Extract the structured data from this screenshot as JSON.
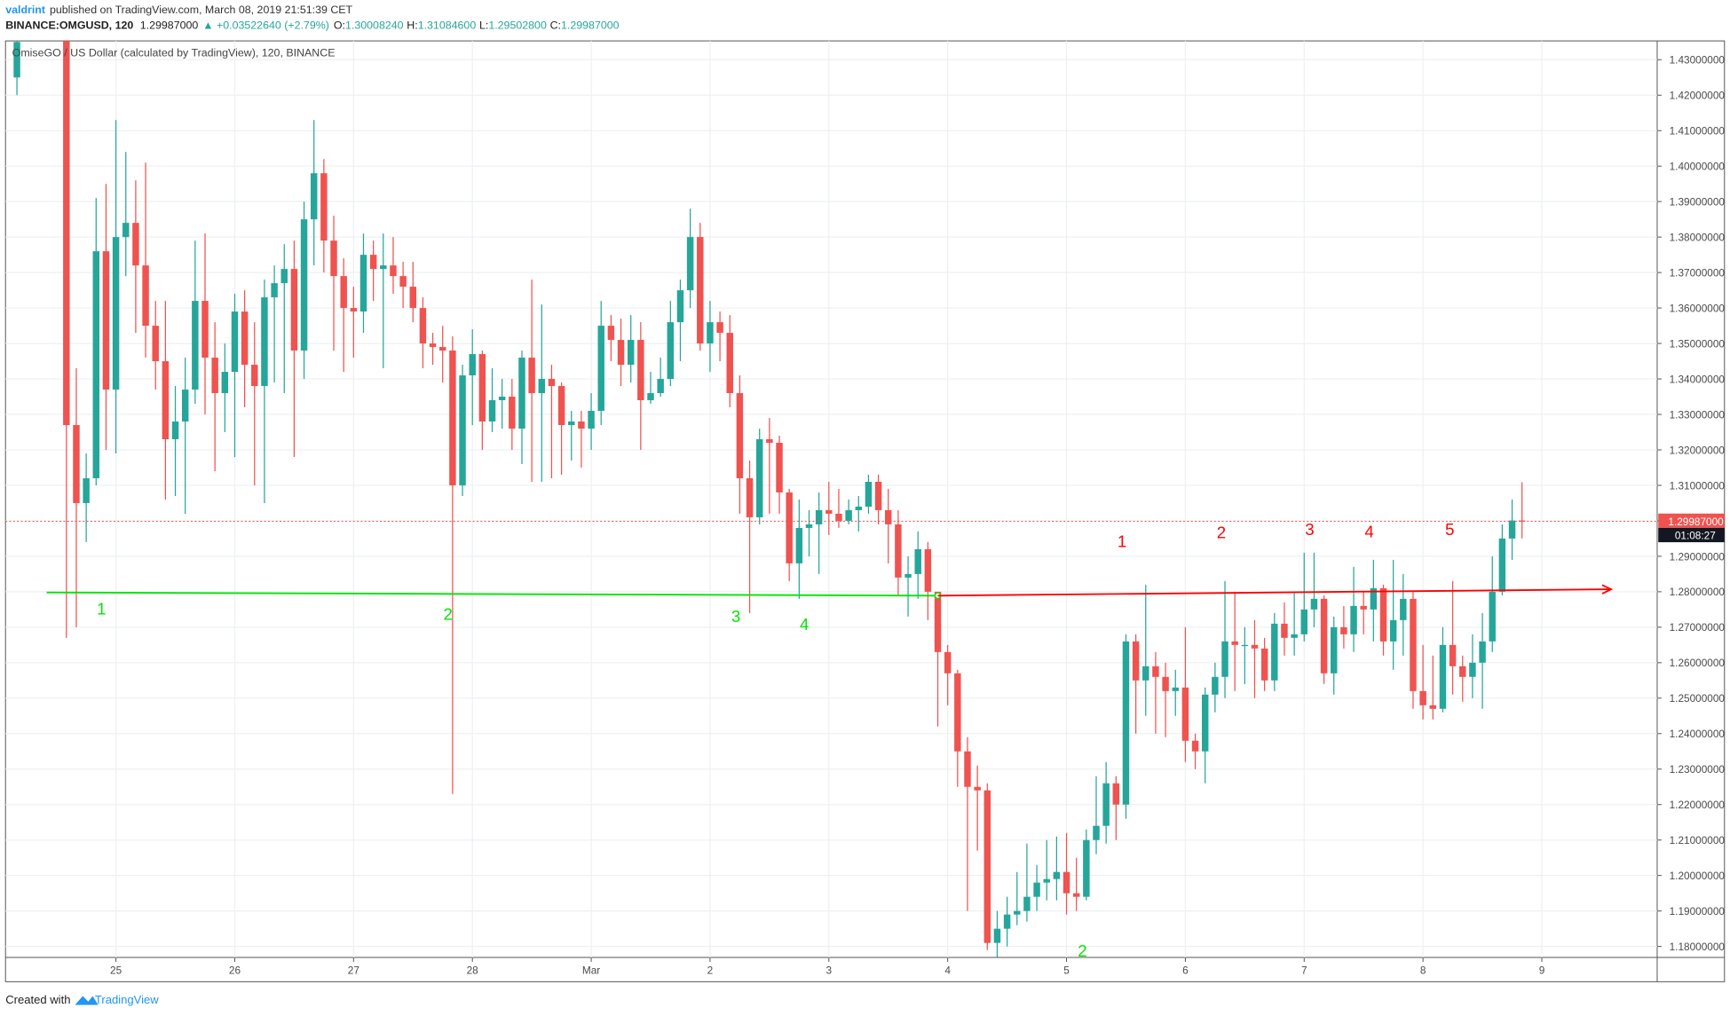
{
  "header": {
    "author": "valdrint",
    "published": "published on TradingView.com, March 08, 2019 21:51:39 CET",
    "symbol": "BINANCE:OMGUSD, 120",
    "last": "1.29987000",
    "change": "▲ +0.03522640 (+2.79%)",
    "o_key": "O:",
    "o_val": "1.30008240",
    "h_key": "H:",
    "h_val": "1.31084600",
    "l_key": "L:",
    "l_val": "1.29502800",
    "c_key": "C:",
    "c_val": "1.29987000",
    "legend": "OmiseGO / US Dollar (calculated by TradingView), 120, BINANCE"
  },
  "footer": {
    "created": "Created with",
    "brand": "TradingView"
  },
  "chart_data": {
    "type": "candlestick",
    "up_color": "#26a69a",
    "down_color": "#ef5350",
    "xlim": [
      -22.3,
      311.3
    ],
    "ylim": [
      1.1769,
      1.4353
    ],
    "xticks": [
      {
        "value": 0,
        "label": "25"
      },
      {
        "value": 24,
        "label": "26"
      },
      {
        "value": 48,
        "label": "27"
      },
      {
        "value": 72,
        "label": "28"
      },
      {
        "value": 96,
        "label": "Mar"
      },
      {
        "value": 120,
        "label": "2"
      },
      {
        "value": 144,
        "label": "3"
      },
      {
        "value": 168,
        "label": "4"
      },
      {
        "value": 192,
        "label": "5"
      },
      {
        "value": 216,
        "label": "6"
      },
      {
        "value": 240,
        "label": "7"
      },
      {
        "value": 264,
        "label": "8"
      },
      {
        "value": 288,
        "label": "9"
      }
    ],
    "yticks": [
      {
        "value": 1.18,
        "label": "1.18000000"
      },
      {
        "value": 1.19,
        "label": "1.19000000"
      },
      {
        "value": 1.2,
        "label": "1.20000000"
      },
      {
        "value": 1.21,
        "label": "1.21000000"
      },
      {
        "value": 1.22,
        "label": "1.22000000"
      },
      {
        "value": 1.23,
        "label": "1.23000000"
      },
      {
        "value": 1.24,
        "label": "1.24000000"
      },
      {
        "value": 1.25,
        "label": "1.25000000"
      },
      {
        "value": 1.26,
        "label": "1.26000000"
      },
      {
        "value": 1.27,
        "label": "1.27000000"
      },
      {
        "value": 1.28,
        "label": "1.28000000"
      },
      {
        "value": 1.29,
        "label": "1.29000000"
      },
      {
        "value": 1.3,
        "label": "1.30000000"
      },
      {
        "value": 1.31,
        "label": "1.31000000"
      },
      {
        "value": 1.32,
        "label": "1.32000000"
      },
      {
        "value": 1.33,
        "label": "1.33000000"
      },
      {
        "value": 1.34,
        "label": "1.34000000"
      },
      {
        "value": 1.35,
        "label": "1.35000000"
      },
      {
        "value": 1.36,
        "label": "1.36000000"
      },
      {
        "value": 1.37,
        "label": "1.37000000"
      },
      {
        "value": 1.38,
        "label": "1.38000000"
      },
      {
        "value": 1.39,
        "label": "1.39000000"
      },
      {
        "value": 1.4,
        "label": "1.40000000"
      },
      {
        "value": 1.41,
        "label": "1.41000000"
      },
      {
        "value": 1.42,
        "label": "1.42000000"
      },
      {
        "value": 1.43,
        "label": "1.43000000"
      }
    ],
    "grid": true,
    "last_price": {
      "value": 1.29987,
      "label": "1.29987000",
      "countdown": "01:08:27",
      "color": "#ef5350"
    },
    "x": [
      -20,
      -10,
      -8,
      -6,
      -4,
      -2,
      0,
      2,
      4,
      6,
      8,
      10,
      12,
      14,
      16,
      18,
      20,
      22,
      24,
      26,
      28,
      30,
      32,
      34,
      36,
      38,
      40,
      42,
      44,
      46,
      48,
      50,
      52,
      54,
      56,
      58,
      60,
      62,
      64,
      66,
      68,
      70,
      72,
      74,
      76,
      78,
      80,
      82,
      84,
      86,
      88,
      90,
      92,
      94,
      96,
      98,
      100,
      102,
      104,
      106,
      108,
      110,
      112,
      114,
      116,
      118,
      120,
      122,
      124,
      126,
      128,
      130,
      132,
      134,
      136,
      138,
      140,
      142,
      144,
      146,
      148,
      150,
      152,
      154,
      156,
      158,
      160,
      162,
      164,
      166,
      168,
      170,
      172,
      174,
      176,
      178,
      180,
      182,
      184,
      186,
      188,
      190,
      192,
      194,
      196,
      198,
      200,
      202,
      204,
      206,
      208,
      210,
      212,
      214,
      216,
      218,
      220,
      222,
      224,
      226,
      228,
      230,
      232,
      234,
      236,
      238,
      240,
      242,
      244,
      246,
      248,
      250,
      252,
      254,
      256,
      258,
      260,
      262,
      264,
      266,
      268,
      270,
      272,
      274,
      276,
      278,
      280,
      282,
      284
    ],
    "ohlc": [
      [
        1.425,
        1.44,
        1.42,
        1.435
      ],
      [
        1.44,
        1.45,
        1.267,
        1.327
      ],
      [
        1.327,
        1.343,
        1.27,
        1.305
      ],
      [
        1.305,
        1.319,
        1.294,
        1.312
      ],
      [
        1.312,
        1.391,
        1.31,
        1.376
      ],
      [
        1.376,
        1.395,
        1.32,
        1.337
      ],
      [
        1.337,
        1.413,
        1.319,
        1.38
      ],
      [
        1.38,
        1.404,
        1.369,
        1.384
      ],
      [
        1.384,
        1.396,
        1.353,
        1.372
      ],
      [
        1.372,
        1.401,
        1.346,
        1.355
      ],
      [
        1.355,
        1.362,
        1.337,
        1.345
      ],
      [
        1.345,
        1.362,
        1.306,
        1.323
      ],
      [
        1.323,
        1.338,
        1.307,
        1.328
      ],
      [
        1.328,
        1.346,
        1.302,
        1.337
      ],
      [
        1.337,
        1.379,
        1.333,
        1.362
      ],
      [
        1.362,
        1.381,
        1.33,
        1.346
      ],
      [
        1.346,
        1.356,
        1.314,
        1.336
      ],
      [
        1.336,
        1.35,
        1.325,
        1.342
      ],
      [
        1.342,
        1.364,
        1.318,
        1.359
      ],
      [
        1.359,
        1.365,
        1.332,
        1.344
      ],
      [
        1.344,
        1.356,
        1.31,
        1.338
      ],
      [
        1.338,
        1.368,
        1.305,
        1.363
      ],
      [
        1.363,
        1.372,
        1.339,
        1.367
      ],
      [
        1.367,
        1.378,
        1.336,
        1.371
      ],
      [
        1.371,
        1.379,
        1.318,
        1.348
      ],
      [
        1.348,
        1.39,
        1.34,
        1.385
      ],
      [
        1.385,
        1.413,
        1.372,
        1.398
      ],
      [
        1.398,
        1.402,
        1.37,
        1.379
      ],
      [
        1.379,
        1.386,
        1.348,
        1.369
      ],
      [
        1.369,
        1.374,
        1.342,
        1.36
      ],
      [
        1.36,
        1.366,
        1.346,
        1.359
      ],
      [
        1.359,
        1.381,
        1.353,
        1.375
      ],
      [
        1.375,
        1.379,
        1.362,
        1.371
      ],
      [
        1.371,
        1.381,
        1.343,
        1.372
      ],
      [
        1.372,
        1.38,
        1.364,
        1.369
      ],
      [
        1.369,
        1.373,
        1.36,
        1.366
      ],
      [
        1.366,
        1.373,
        1.356,
        1.36
      ],
      [
        1.36,
        1.363,
        1.343,
        1.35
      ],
      [
        1.35,
        1.353,
        1.344,
        1.349
      ],
      [
        1.349,
        1.355,
        1.339,
        1.348
      ],
      [
        1.348,
        1.352,
        1.223,
        1.31
      ],
      [
        1.31,
        1.344,
        1.307,
        1.341
      ],
      [
        1.341,
        1.354,
        1.327,
        1.347
      ],
      [
        1.347,
        1.348,
        1.32,
        1.328
      ],
      [
        1.328,
        1.343,
        1.325,
        1.334
      ],
      [
        1.334,
        1.34,
        1.326,
        1.335
      ],
      [
        1.335,
        1.34,
        1.32,
        1.326
      ],
      [
        1.326,
        1.348,
        1.316,
        1.346
      ],
      [
        1.346,
        1.368,
        1.311,
        1.336
      ],
      [
        1.336,
        1.361,
        1.311,
        1.34
      ],
      [
        1.34,
        1.344,
        1.312,
        1.338
      ],
      [
        1.338,
        1.339,
        1.313,
        1.327
      ],
      [
        1.327,
        1.331,
        1.317,
        1.328
      ],
      [
        1.328,
        1.331,
        1.315,
        1.326
      ],
      [
        1.326,
        1.336,
        1.32,
        1.331
      ],
      [
        1.331,
        1.362,
        1.327,
        1.355
      ],
      [
        1.355,
        1.358,
        1.345,
        1.351
      ],
      [
        1.351,
        1.357,
        1.338,
        1.344
      ],
      [
        1.344,
        1.358,
        1.339,
        1.351
      ],
      [
        1.351,
        1.356,
        1.32,
        1.334
      ],
      [
        1.334,
        1.342,
        1.333,
        1.336
      ],
      [
        1.336,
        1.346,
        1.335,
        1.34
      ],
      [
        1.34,
        1.362,
        1.338,
        1.356
      ],
      [
        1.356,
        1.368,
        1.345,
        1.365
      ],
      [
        1.365,
        1.388,
        1.36,
        1.38
      ],
      [
        1.38,
        1.384,
        1.348,
        1.35
      ],
      [
        1.35,
        1.362,
        1.342,
        1.356
      ],
      [
        1.356,
        1.359,
        1.345,
        1.353
      ],
      [
        1.353,
        1.358,
        1.332,
        1.336
      ],
      [
        1.336,
        1.341,
        1.302,
        1.312
      ],
      [
        1.312,
        1.317,
        1.274,
        1.301
      ],
      [
        1.301,
        1.326,
        1.299,
        1.323
      ],
      [
        1.323,
        1.329,
        1.302,
        1.322
      ],
      [
        1.322,
        1.324,
        1.302,
        1.308
      ],
      [
        1.308,
        1.309,
        1.283,
        1.288
      ],
      [
        1.288,
        1.306,
        1.278,
        1.298
      ],
      [
        1.298,
        1.303,
        1.29,
        1.299
      ],
      [
        1.299,
        1.308,
        1.285,
        1.303
      ],
      [
        1.303,
        1.311,
        1.296,
        1.302
      ],
      [
        1.302,
        1.309,
        1.298,
        1.3
      ],
      [
        1.3,
        1.306,
        1.299,
        1.303
      ],
      [
        1.303,
        1.307,
        1.297,
        1.304
      ],
      [
        1.304,
        1.313,
        1.302,
        1.311
      ],
      [
        1.311,
        1.313,
        1.299,
        1.303
      ],
      [
        1.303,
        1.309,
        1.288,
        1.299
      ],
      [
        1.299,
        1.303,
        1.279,
        1.284
      ],
      [
        1.284,
        1.29,
        1.273,
        1.285
      ],
      [
        1.285,
        1.297,
        1.278,
        1.292
      ],
      [
        1.292,
        1.294,
        1.272,
        1.28
      ],
      [
        1.28,
        1.28,
        1.242,
        1.263
      ],
      [
        1.263,
        1.265,
        1.248,
        1.257
      ],
      [
        1.257,
        1.258,
        1.225,
        1.235
      ],
      [
        1.235,
        1.239,
        1.19,
        1.225
      ],
      [
        1.225,
        1.231,
        1.207,
        1.224
      ],
      [
        1.224,
        1.226,
        1.179,
        1.181
      ],
      [
        1.181,
        1.19,
        1.177,
        1.185
      ],
      [
        1.185,
        1.194,
        1.18,
        1.189
      ],
      [
        1.189,
        1.201,
        1.186,
        1.19
      ],
      [
        1.19,
        1.209,
        1.187,
        1.194
      ],
      [
        1.194,
        1.203,
        1.19,
        1.198
      ],
      [
        1.198,
        1.21,
        1.193,
        1.199
      ],
      [
        1.199,
        1.211,
        1.193,
        1.201
      ],
      [
        1.201,
        1.212,
        1.189,
        1.195
      ],
      [
        1.195,
        1.205,
        1.19,
        1.194
      ],
      [
        1.194,
        1.213,
        1.193,
        1.21
      ],
      [
        1.21,
        1.228,
        1.206,
        1.214
      ],
      [
        1.214,
        1.232,
        1.209,
        1.226
      ],
      [
        1.226,
        1.228,
        1.21,
        1.22
      ],
      [
        1.22,
        1.268,
        1.216,
        1.266
      ],
      [
        1.266,
        1.268,
        1.24,
        1.255
      ],
      [
        1.255,
        1.282,
        1.245,
        1.259
      ],
      [
        1.259,
        1.263,
        1.24,
        1.256
      ],
      [
        1.256,
        1.26,
        1.239,
        1.252
      ],
      [
        1.252,
        1.258,
        1.245,
        1.253
      ],
      [
        1.253,
        1.27,
        1.232,
        1.238
      ],
      [
        1.238,
        1.24,
        1.23,
        1.235
      ],
      [
        1.235,
        1.253,
        1.226,
        1.251
      ],
      [
        1.251,
        1.26,
        1.246,
        1.256
      ],
      [
        1.256,
        1.283,
        1.25,
        1.266
      ],
      [
        1.266,
        1.28,
        1.252,
        1.265
      ],
      [
        1.265,
        1.27,
        1.254,
        1.265
      ],
      [
        1.265,
        1.272,
        1.25,
        1.264
      ],
      [
        1.264,
        1.267,
        1.252,
        1.255
      ],
      [
        1.255,
        1.274,
        1.252,
        1.271
      ],
      [
        1.271,
        1.277,
        1.262,
        1.267
      ],
      [
        1.267,
        1.28,
        1.262,
        1.268
      ],
      [
        1.268,
        1.291,
        1.266,
        1.275
      ],
      [
        1.275,
        1.291,
        1.27,
        1.278
      ],
      [
        1.278,
        1.279,
        1.254,
        1.257
      ],
      [
        1.257,
        1.273,
        1.251,
        1.27
      ],
      [
        1.27,
        1.276,
        1.264,
        1.268
      ],
      [
        1.268,
        1.287,
        1.263,
        1.276
      ],
      [
        1.276,
        1.28,
        1.268,
        1.275
      ],
      [
        1.275,
        1.289,
        1.266,
        1.281
      ],
      [
        1.281,
        1.282,
        1.262,
        1.266
      ],
      [
        1.266,
        1.289,
        1.258,
        1.272
      ],
      [
        1.272,
        1.285,
        1.262,
        1.278
      ],
      [
        1.278,
        1.28,
        1.247,
        1.252
      ],
      [
        1.252,
        1.265,
        1.244,
        1.248
      ],
      [
        1.248,
        1.262,
        1.244,
        1.247
      ],
      [
        1.247,
        1.27,
        1.246,
        1.265
      ],
      [
        1.265,
        1.283,
        1.251,
        1.259
      ],
      [
        1.259,
        1.262,
        1.249,
        1.256
      ],
      [
        1.256,
        1.268,
        1.25,
        1.26
      ],
      [
        1.26,
        1.274,
        1.247,
        1.266
      ],
      [
        1.266,
        1.29,
        1.263,
        1.28
      ],
      [
        1.28,
        1.299,
        1.279,
        1.295
      ],
      [
        1.295,
        1.306,
        1.289,
        1.3000824
      ],
      [
        1.3000824,
        1.310846,
        1.295028,
        1.29987
      ]
    ],
    "lines": [
      {
        "color": "#00e600",
        "x": [
          -14,
          166
        ],
        "y": [
          1.2798,
          1.2789
        ]
      },
      {
        "color": "#ff0000",
        "x": [
          166,
          302
        ],
        "y": [
          1.2789,
          1.2807
        ],
        "arrow": true
      }
    ],
    "annotations": [
      {
        "text": "1",
        "color": "#00e600"
      },
      {
        "text": "2",
        "color": "#00e600"
      },
      {
        "text": "3",
        "color": "#00e600"
      },
      {
        "text": "4",
        "color": "#00e600"
      },
      {
        "text": "2",
        "color": "#00e600"
      },
      {
        "text": "1",
        "color": "#ff0000"
      },
      {
        "text": "2",
        "color": "#ff0000"
      },
      {
        "text": "3",
        "color": "#ff0000"
      },
      {
        "text": "4",
        "color": "#ff0000"
      },
      {
        "text": "5",
        "color": "#ff0000"
      }
    ]
  }
}
